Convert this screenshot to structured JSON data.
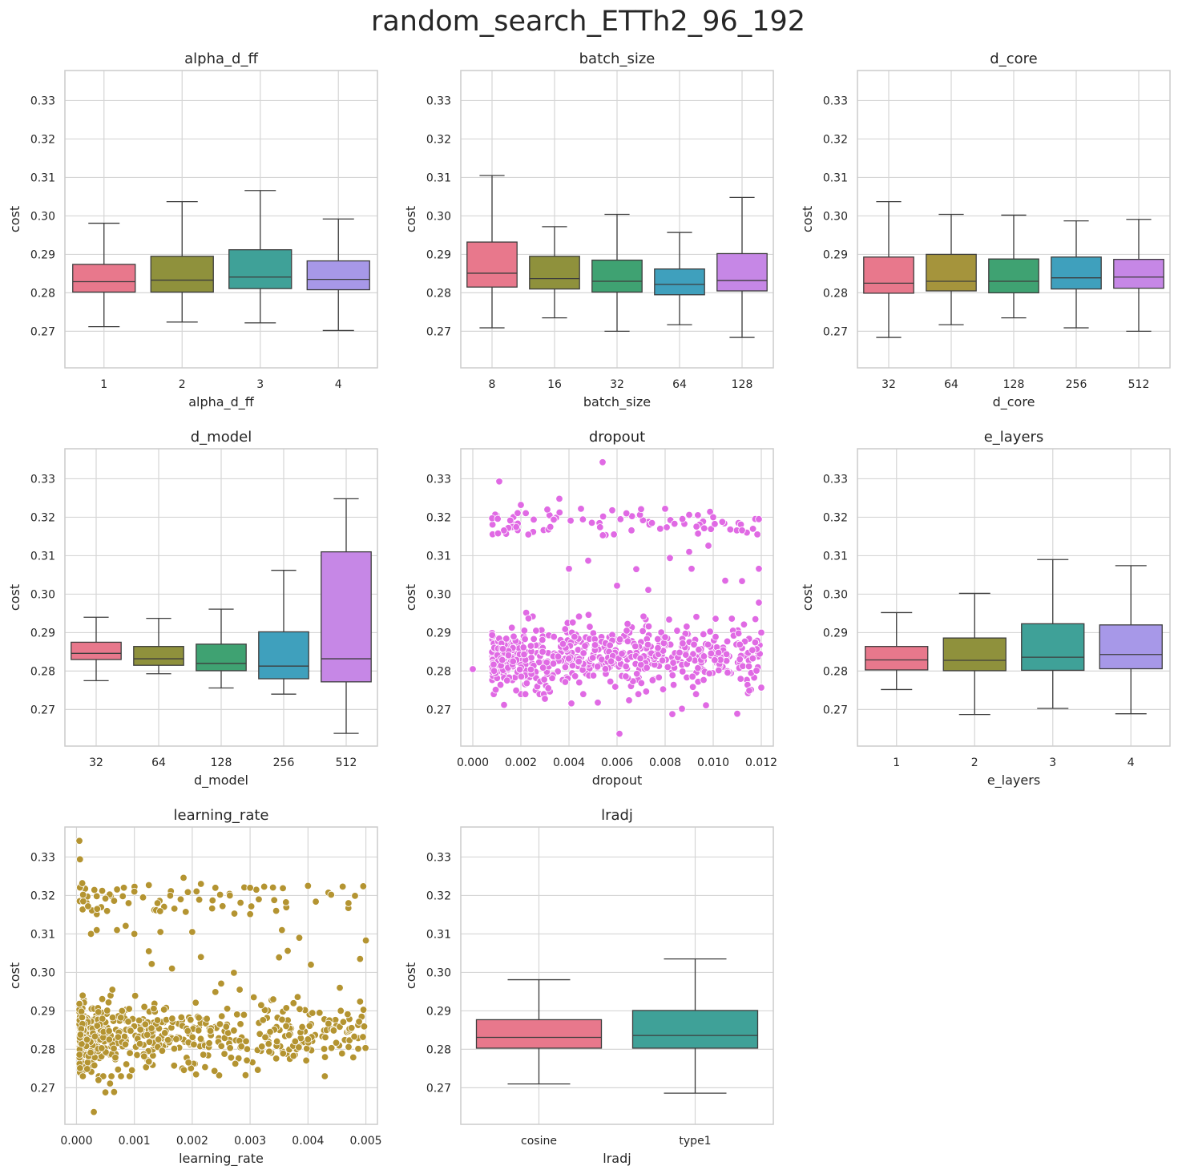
{
  "figure_title": "random_search_ETTh2_96_192",
  "shared_y": {
    "label": "cost",
    "lim": [
      0.2605,
      0.3378
    ],
    "ticks": [
      0.27,
      0.28,
      0.29,
      0.3,
      0.31,
      0.32,
      0.33
    ],
    "tick_labels": [
      "0.27",
      "0.28",
      "0.29",
      "0.30",
      "0.31",
      "0.32",
      "0.33"
    ]
  },
  "chart_data": [
    {
      "type": "box",
      "title": "alpha_d_ff",
      "xlabel": "alpha_d_ff",
      "ylabel": "cost",
      "categories": [
        "1",
        "2",
        "3",
        "4"
      ],
      "colors": [
        "#e8788c",
        "#8f913c",
        "#3fa198",
        "#a798e8"
      ],
      "boxes": [
        {
          "whislo": 0.2712,
          "q1": 0.2802,
          "med": 0.2829,
          "q3": 0.2874,
          "whishi": 0.2981
        },
        {
          "whislo": 0.2724,
          "q1": 0.2802,
          "med": 0.2833,
          "q3": 0.2895,
          "whishi": 0.3037
        },
        {
          "whislo": 0.2722,
          "q1": 0.2811,
          "med": 0.2841,
          "q3": 0.2912,
          "whishi": 0.3066
        },
        {
          "whislo": 0.2702,
          "q1": 0.2808,
          "med": 0.2835,
          "q3": 0.2883,
          "whishi": 0.2992
        }
      ]
    },
    {
      "type": "box",
      "title": "batch_size",
      "xlabel": "batch_size",
      "ylabel": "cost",
      "categories": [
        "8",
        "16",
        "32",
        "64",
        "128"
      ],
      "colors": [
        "#e8788c",
        "#8f913c",
        "#3fa272",
        "#3fa0bd",
        "#c687e6"
      ],
      "boxes": [
        {
          "whislo": 0.2709,
          "q1": 0.2815,
          "med": 0.2851,
          "q3": 0.2932,
          "whishi": 0.3105
        },
        {
          "whislo": 0.2735,
          "q1": 0.281,
          "med": 0.2837,
          "q3": 0.2895,
          "whishi": 0.2972
        },
        {
          "whislo": 0.27,
          "q1": 0.2802,
          "med": 0.283,
          "q3": 0.2885,
          "whishi": 0.3004
        },
        {
          "whislo": 0.2717,
          "q1": 0.2795,
          "med": 0.2822,
          "q3": 0.2862,
          "whishi": 0.2957
        },
        {
          "whislo": 0.2684,
          "q1": 0.2805,
          "med": 0.2832,
          "q3": 0.2902,
          "whishi": 0.3048
        }
      ]
    },
    {
      "type": "box",
      "title": "d_core",
      "xlabel": "d_core",
      "ylabel": "cost",
      "categories": [
        "32",
        "64",
        "128",
        "256",
        "512"
      ],
      "colors": [
        "#e8788c",
        "#a5943c",
        "#3fa272",
        "#3fa0bd",
        "#c687e6"
      ],
      "boxes": [
        {
          "whislo": 0.2684,
          "q1": 0.2799,
          "med": 0.2825,
          "q3": 0.2893,
          "whishi": 0.3037
        },
        {
          "whislo": 0.2717,
          "q1": 0.2805,
          "med": 0.283,
          "q3": 0.29,
          "whishi": 0.3004
        },
        {
          "whislo": 0.2735,
          "q1": 0.28,
          "med": 0.283,
          "q3": 0.2888,
          "whishi": 0.3002
        },
        {
          "whislo": 0.2709,
          "q1": 0.281,
          "med": 0.2839,
          "q3": 0.2893,
          "whishi": 0.2987
        },
        {
          "whislo": 0.27,
          "q1": 0.2812,
          "med": 0.2841,
          "q3": 0.2887,
          "whishi": 0.2991
        }
      ]
    },
    {
      "type": "box",
      "title": "d_model",
      "xlabel": "d_model",
      "ylabel": "cost",
      "categories": [
        "32",
        "64",
        "128",
        "256",
        "512"
      ],
      "colors": [
        "#e8788c",
        "#8f913c",
        "#3fa272",
        "#3fa0bd",
        "#c687e6"
      ],
      "boxes": [
        {
          "whislo": 0.2775,
          "q1": 0.283,
          "med": 0.2846,
          "q3": 0.2875,
          "whishi": 0.294
        },
        {
          "whislo": 0.2793,
          "q1": 0.2815,
          "med": 0.2832,
          "q3": 0.2864,
          "whishi": 0.2937
        },
        {
          "whislo": 0.2756,
          "q1": 0.2801,
          "med": 0.282,
          "q3": 0.287,
          "whishi": 0.2961
        },
        {
          "whislo": 0.274,
          "q1": 0.278,
          "med": 0.2813,
          "q3": 0.2902,
          "whishi": 0.3062
        },
        {
          "whislo": 0.2638,
          "q1": 0.2772,
          "med": 0.2832,
          "q3": 0.311,
          "whishi": 0.3248
        }
      ]
    },
    {
      "type": "scatter",
      "title": "dropout",
      "xlabel": "dropout",
      "ylabel": "cost",
      "color": "#e06ae4",
      "xlim": [
        -0.0005,
        0.0125
      ],
      "xticks": [
        0.0,
        0.002,
        0.004,
        0.006,
        0.008,
        0.01,
        0.012
      ],
      "xtick_labels": [
        "0.000",
        "0.002",
        "0.004",
        "0.006",
        "0.008",
        "0.010",
        "0.012"
      ],
      "x_range": [
        0.0,
        0.012
      ],
      "points": [
        [
          0.0,
          0.2805
        ],
        [
          0.0011,
          0.3293
        ],
        [
          0.0054,
          0.3343
        ],
        [
          0.0061,
          0.2637
        ],
        [
          0.0036,
          0.3248
        ],
        [
          0.002,
          0.3232
        ],
        [
          0.0031,
          0.322
        ],
        [
          0.0045,
          0.3222
        ],
        [
          0.0058,
          0.3218
        ],
        [
          0.007,
          0.3221
        ],
        [
          0.008,
          0.3222
        ],
        [
          0.009,
          0.3206
        ],
        [
          0.01,
          0.32
        ],
        [
          0.0114,
          0.316
        ],
        [
          0.0119,
          0.3195
        ],
        [
          0.0112,
          0.3166
        ],
        [
          0.009,
          0.311
        ],
        [
          0.0098,
          0.3126
        ],
        [
          0.0105,
          0.3035
        ],
        [
          0.0112,
          0.3034
        ],
        [
          0.0119,
          0.2978
        ],
        [
          0.0119,
          0.3066
        ],
        [
          0.0091,
          0.3066
        ],
        [
          0.0073,
          0.3011
        ],
        [
          0.0068,
          0.3065
        ],
        [
          0.0082,
          0.3094
        ],
        [
          0.006,
          0.3022
        ],
        [
          0.004,
          0.3066
        ],
        [
          0.0048,
          0.3087
        ],
        [
          0.0083,
          0.2688
        ],
        [
          0.0087,
          0.2702
        ],
        [
          0.0097,
          0.2711
        ],
        [
          0.011,
          0.2689
        ],
        [
          0.0065,
          0.2724
        ],
        [
          0.0052,
          0.2718
        ],
        [
          0.0041,
          0.2716
        ],
        [
          0.003,
          0.2728
        ],
        [
          0.0013,
          0.2712
        ],
        [
          0.012,
          0.29
        ],
        [
          0.012,
          0.2757
        ],
        [
          0.0118,
          0.2801
        ],
        [
          0.0115,
          0.2749
        ],
        [
          0.0106,
          0.2796
        ],
        [
          0.0101,
          0.2889
        ],
        [
          0.0101,
          0.2936
        ],
        [
          0.0092,
          0.2869
        ],
        [
          0.0093,
          0.2941
        ],
        [
          0.0086,
          0.2848
        ],
        [
          0.008,
          0.2888
        ],
        [
          0.0077,
          0.286
        ],
        [
          0.0071,
          0.2942
        ],
        [
          0.0064,
          0.2905
        ],
        [
          0.0062,
          0.2845
        ]
      ],
      "dense_region": {
        "x": [
          0.0008,
          0.012
        ],
        "y_low": [
          0.274,
          0.296
        ],
        "y_high": [
          0.315,
          0.3215
        ],
        "n": 650
      }
    },
    {
      "type": "box",
      "title": "e_layers",
      "xlabel": "e_layers",
      "ylabel": "cost",
      "categories": [
        "1",
        "2",
        "3",
        "4"
      ],
      "colors": [
        "#e8788c",
        "#8f913c",
        "#3fa198",
        "#a798e8"
      ],
      "boxes": [
        {
          "whislo": 0.2752,
          "q1": 0.2803,
          "med": 0.2829,
          "q3": 0.2864,
          "whishi": 0.2952
        },
        {
          "whislo": 0.2687,
          "q1": 0.2801,
          "med": 0.2828,
          "q3": 0.2886,
          "whishi": 0.3002
        },
        {
          "whislo": 0.2703,
          "q1": 0.2802,
          "med": 0.2836,
          "q3": 0.2923,
          "whishi": 0.309
        },
        {
          "whislo": 0.2689,
          "q1": 0.2806,
          "med": 0.2843,
          "q3": 0.292,
          "whishi": 0.3074
        }
      ]
    },
    {
      "type": "scatter",
      "title": "learning_rate",
      "xlabel": "learning_rate",
      "ylabel": "cost",
      "color": "#b49431",
      "xlim": [
        -0.0002,
        0.0052
      ],
      "xticks": [
        0.0,
        0.001,
        0.002,
        0.003,
        0.004,
        0.005
      ],
      "xtick_labels": [
        "0.000",
        "0.001",
        "0.002",
        "0.003",
        "0.004",
        "0.005"
      ],
      "points": [
        [
          5e-05,
          0.3342
        ],
        [
          6e-05,
          0.3294
        ],
        [
          0.0001,
          0.3232
        ],
        [
          0.0002,
          0.3172
        ],
        [
          0.00035,
          0.3198
        ],
        [
          0.0003,
          0.2637
        ],
        [
          0.0005,
          0.2688
        ],
        [
          0.00065,
          0.2689
        ],
        [
          0.00058,
          0.2711
        ],
        [
          0.00038,
          0.272
        ],
        [
          0.0005,
          0.3192
        ],
        [
          0.00065,
          0.3186
        ],
        [
          0.0008,
          0.3198
        ],
        [
          0.0009,
          0.318
        ],
        [
          0.001,
          0.321
        ],
        [
          0.001,
          0.31
        ],
        [
          0.00085,
          0.3121
        ],
        [
          0.0007,
          0.311
        ],
        [
          0.00035,
          0.311
        ],
        [
          0.00025,
          0.31
        ],
        [
          0.00062,
          0.2955
        ],
        [
          0.00115,
          0.3195
        ],
        [
          0.00125,
          0.3227
        ],
        [
          0.0014,
          0.318
        ],
        [
          0.0018,
          0.319
        ],
        [
          0.00185,
          0.3246
        ],
        [
          0.00145,
          0.3105
        ],
        [
          0.00125,
          0.3055
        ],
        [
          0.0013,
          0.3022
        ],
        [
          0.00165,
          0.301
        ],
        [
          0.002,
          0.3105
        ],
        [
          0.00215,
          0.304
        ],
        [
          0.00215,
          0.323
        ],
        [
          0.0024,
          0.322
        ],
        [
          0.00265,
          0.32
        ],
        [
          0.0029,
          0.3221
        ],
        [
          0.00315,
          0.319
        ],
        [
          0.00345,
          0.316
        ],
        [
          0.00355,
          0.311
        ],
        [
          0.00365,
          0.3056
        ],
        [
          0.0035,
          0.3039
        ],
        [
          0.00385,
          0.309
        ],
        [
          0.00405,
          0.302
        ],
        [
          0.0044,
          0.3202
        ],
        [
          0.0047,
          0.318
        ],
        [
          0.005,
          0.3083
        ],
        [
          0.0049,
          0.3035
        ],
        [
          0.0046,
          0.3223
        ],
        [
          0.004,
          0.3225
        ],
        [
          0.003,
          0.322
        ],
        [
          0.00375,
          0.2783
        ],
        [
          0.00282,
          0.2955
        ],
        [
          0.00272,
          0.2999
        ],
        [
          0.0025,
          0.2971
        ],
        [
          0.0024,
          0.2949
        ],
        [
          0.00495,
          0.2832
        ],
        [
          0.0049,
          0.2924
        ],
        [
          0.0048,
          0.2833
        ],
        [
          0.00455,
          0.296
        ],
        [
          0.0043,
          0.2831
        ],
        [
          0.0042,
          0.2895
        ],
        [
          0.004,
          0.2826
        ],
        [
          0.0039,
          0.2858
        ],
        [
          0.00375,
          0.292
        ],
        [
          0.0034,
          0.293
        ]
      ],
      "dense_region": {
        "x": [
          5e-05,
          0.005
        ],
        "y_low": [
          0.273,
          0.294
        ],
        "y_high": [
          0.315,
          0.3225
        ],
        "n": 650
      }
    },
    {
      "type": "box",
      "title": "lradj",
      "xlabel": "lradj",
      "ylabel": "cost",
      "categories": [
        "cosine",
        "type1"
      ],
      "colors": [
        "#e8788c",
        "#3fa198"
      ],
      "boxes": [
        {
          "whislo": 0.271,
          "q1": 0.2803,
          "med": 0.2831,
          "q3": 0.2877,
          "whishi": 0.2981
        },
        {
          "whislo": 0.2686,
          "q1": 0.2803,
          "med": 0.2836,
          "q3": 0.2901,
          "whishi": 0.3035
        }
      ]
    }
  ]
}
